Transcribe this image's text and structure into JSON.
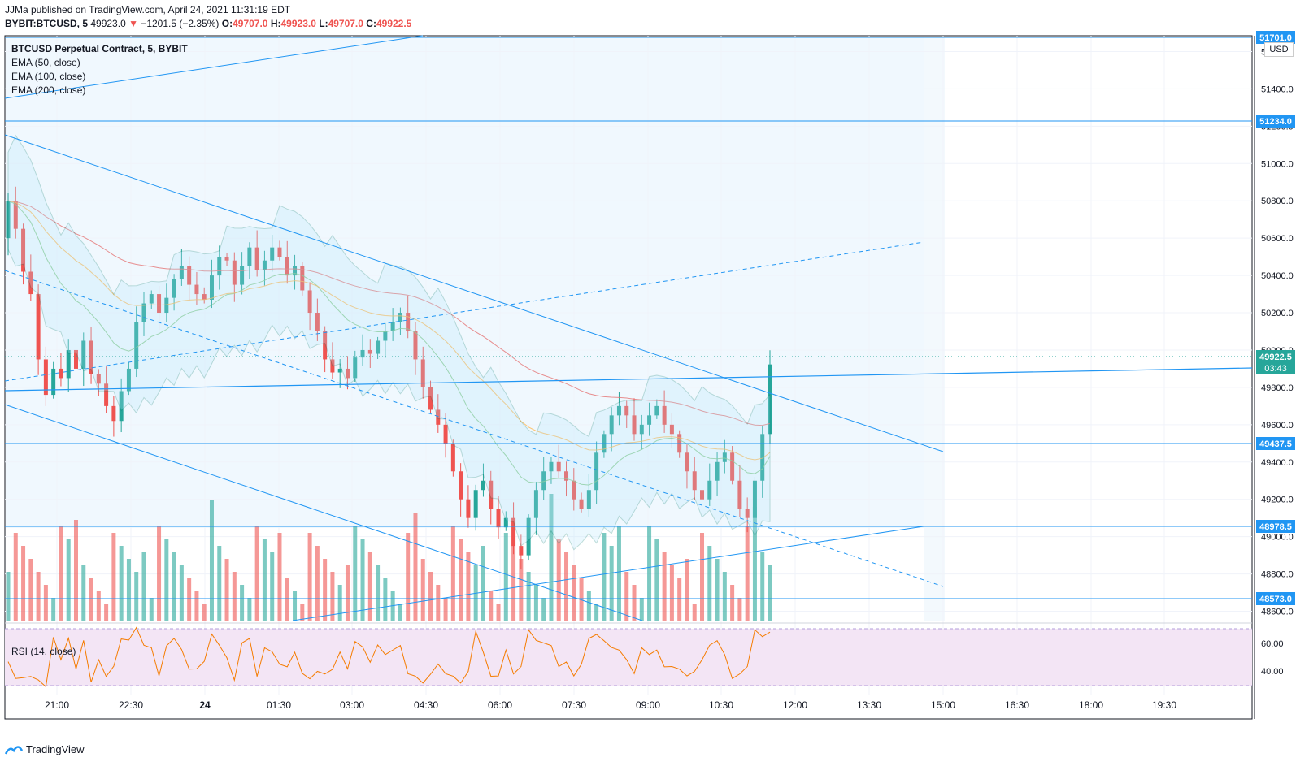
{
  "header": {
    "publisher": "JJMa published on TradingView.com, April 24, 2021 11:31:19 EDT",
    "symbol": "BYBIT:BTCUSD, 5",
    "last": "49923.0",
    "change": "−1201.5 (−2.35%)",
    "o_label": "O:",
    "o_value": "49707.0",
    "h_label": "H:",
    "h_value": "49923.0",
    "l_label": "L:",
    "l_value": "49707.0",
    "c_label": "C:",
    "c_value": "49922.5",
    "down_arrow": "▼"
  },
  "legend": {
    "title": "BTCUSD Perpetual Contract, 5, BYBIT",
    "ema50": "EMA (50, close)",
    "ema100": "EMA (100, close)",
    "ema200": "EMA (200, close)"
  },
  "rsi": {
    "label": "RSI (14, close)",
    "ticks": [
      "60.00",
      "40.00"
    ]
  },
  "currency": "USD",
  "footer": {
    "brand": "TradingView"
  },
  "colors": {
    "up": "#26a69a",
    "down": "#ef5350",
    "line": "#2196f3",
    "price_badge": "#26a69a",
    "level_badge": "#2196f3",
    "rsi_bg": "#f3e5f5",
    "rsi_line": "#f57c00"
  },
  "chart_data": {
    "type": "candlestick",
    "y_ticks": [
      "51600.0",
      "51400.0",
      "51200.0",
      "51000.0",
      "50800.0",
      "50600.0",
      "50400.0",
      "50200.0",
      "50000.0",
      "49800.0",
      "49600.0",
      "49400.0",
      "49200.0",
      "49000.0",
      "48800.0",
      "48600.0"
    ],
    "x_ticks": [
      "21:00",
      "22:30",
      "24",
      "01:30",
      "03:00",
      "04:30",
      "06:00",
      "07:30",
      "09:00",
      "10:30",
      "12:00",
      "13:30",
      "15:00",
      "16:30",
      "18:00",
      "19:30"
    ],
    "price_levels": [
      "51701.0",
      "51234.0",
      "49437.5",
      "48978.5",
      "48573.0"
    ],
    "current_price": "49922.5",
    "countdown": "03:43",
    "close_path": [
      50800,
      50650,
      50420,
      50300,
      49950,
      49760,
      49900,
      49850,
      50000,
      49900,
      50050,
      49870,
      49820,
      49700,
      49620,
      49780,
      49900,
      50150,
      50250,
      50300,
      50200,
      50280,
      50380,
      50450,
      50350,
      50300,
      50270,
      50400,
      50500,
      50480,
      50350,
      50450,
      50550,
      50430,
      50480,
      50550,
      50500,
      50400,
      50450,
      50320,
      50200,
      50100,
      49950,
      49880,
      49900,
      49850,
      49960,
      50000,
      49980,
      50050,
      50100,
      50150,
      50200,
      50100,
      49950,
      49800,
      49680,
      49600,
      49500,
      49350,
      49200,
      49100,
      49250,
      49300,
      49150,
      49050,
      49100,
      48950,
      48900,
      49100,
      49250,
      49350,
      49400,
      49350,
      49300,
      49200,
      49150,
      49250,
      49450,
      49550,
      49650,
      49700,
      49650,
      49550,
      49600,
      49650,
      49700,
      49600,
      49550,
      49450,
      49350,
      49250,
      49200,
      49300,
      49400,
      49450,
      49300,
      49150,
      49100,
      49300,
      49550,
      49923
    ]
  }
}
